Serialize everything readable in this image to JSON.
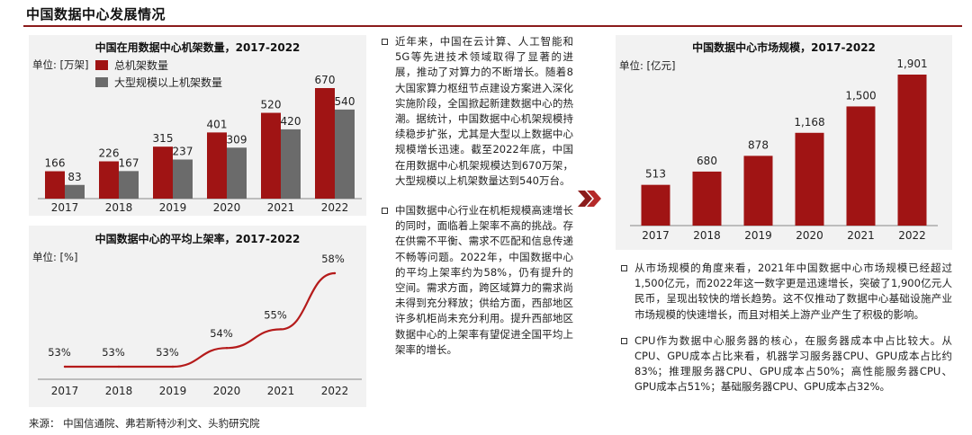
{
  "page": {
    "title": "中国数据中心发展情况",
    "source": "来源：  中国信通院、弗若斯特沙利文、头豹研究院"
  },
  "colors": {
    "accent": "#8b1c1c",
    "red_bar": "#a01414",
    "grey_bar": "#6b6b6b",
    "line": "#b51b1b",
    "panel_bg": "#f2f2f2"
  },
  "racks_panel": {
    "title": "中国在用数据中心机架数量，2017-2022",
    "unit": "单位: [万架]",
    "legend_total": "总机架数量",
    "legend_large": "大型规模以上机架数量"
  },
  "util_panel": {
    "title": "中国数据中心的平均上架率，2017-2022",
    "unit": "单位: [%]"
  },
  "market_panel": {
    "title": "中国数据中心市场规模，2017-2022",
    "unit": "单位: [亿元]"
  },
  "middle_text": {
    "p1": "近年来，中国在云计算、人工智能和5G等先进技术领域取得了显著的进展，推动了对算力的不断增长。随着8大国家算力枢纽节点建设方案进入深化实施阶段，全国掀起新建数据中心的热潮。据统计，中国数据中心机架规模持续稳步扩张，尤其是大型以上数据中心规模增长迅速。截至2022年底，中国在用数据中心机架规模达到670万架，大型规模以上机架数量达到540万台。",
    "p2": "中国数据中心行业在机柜规模高速增长的同时，面临着上架率不高的挑战。存在供需不平衡、需求不匹配和信息传递不畅等问题。2022年，中国数据中心的平均上架率约为58%，仍有提升的空间。需求方面，跨区域算力的需求尚未得到充分释放；供给方面，西部地区许多机柜尚未充分利用。提升西部地区数据中心的上架率有望促进全国平均上架率的增长。"
  },
  "right_text": {
    "p1": "从市场规模的角度来看，2021年中国数据中心市场规模已经超过1,500亿元，而2022年这一数字更是迅速增长，突破了1,900亿元人民币，呈现出较快的增长趋势。这不仅推动了数据中心基础设施产业市场规模的快速增长，而且对相关上游产业产生了积极的影响。",
    "p2": "CPU作为数据中心服务器的核心，在服务器成本中占比较大。从CPU、GPU成本占比来看，机器学习服务器CPU、GPU成本占比约83%；推理服务器CPU、GPU成本占50%；高性能服务器CPU、GPU成本占51%；基础服务器CPU、GPU成本占32%。"
  },
  "chart_data": [
    {
      "id": "racks",
      "type": "bar",
      "title": "中国在用数据中心机架数量，2017-2022",
      "unit": "万架",
      "categories": [
        "2017",
        "2018",
        "2019",
        "2020",
        "2021",
        "2022"
      ],
      "series": [
        {
          "name": "总机架数量",
          "values": [
            166,
            226,
            315,
            401,
            520,
            670
          ],
          "labels": [
            "166",
            "226",
            "315",
            "401",
            "520",
            "670"
          ]
        },
        {
          "name": "大型规模以上机架数量",
          "values": [
            83,
            167,
            237,
            309,
            420,
            540
          ],
          "labels": [
            "83",
            "167",
            "237",
            "309",
            "420",
            "540"
          ]
        }
      ],
      "ylim": [
        0,
        670
      ],
      "legend": "top-left",
      "grid": false
    },
    {
      "id": "utilization",
      "type": "line",
      "title": "中国数据中心的平均上架率，2017-2022",
      "unit": "%",
      "categories": [
        "2017",
        "2018",
        "2019",
        "2020",
        "2021",
        "2022"
      ],
      "series": [
        {
          "values": [
            53,
            53,
            53,
            54,
            55,
            58
          ],
          "labels": [
            "53%",
            "53%",
            "53%",
            "54%",
            "55%",
            "58%"
          ]
        }
      ],
      "grid": false
    },
    {
      "id": "market",
      "type": "bar",
      "title": "中国数据中心市场规模，2017-2022",
      "unit": "亿元",
      "categories": [
        "2017",
        "2018",
        "2019",
        "2020",
        "2021",
        "2022"
      ],
      "series": [
        {
          "values": [
            513,
            680,
            878,
            1168,
            1500,
            1901
          ],
          "labels": [
            "513",
            "680",
            "878",
            "1,168",
            "1,500",
            "1,901"
          ]
        }
      ],
      "ylim": [
        0,
        1901
      ],
      "grid": false
    }
  ]
}
